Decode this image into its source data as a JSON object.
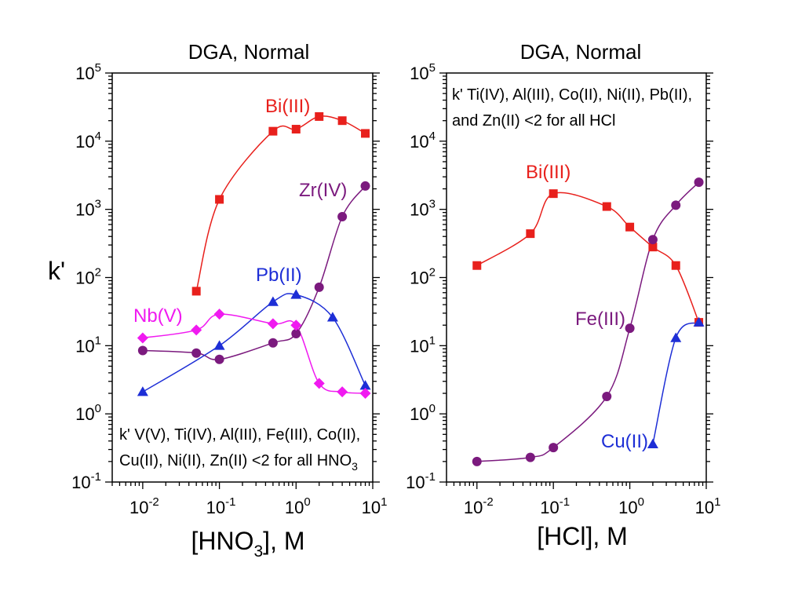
{
  "chart_data": [
    {
      "type": "scatter",
      "title": "DGA, Normal",
      "xlabel": "[HNO3], M",
      "xlabel_parts": {
        "prefix": "[HNO",
        "sub": "3",
        "suffix": "], M"
      },
      "ylabel": "k'",
      "xscale": "log",
      "yscale": "log",
      "xlim": [
        0.004,
        10
      ],
      "ylim": [
        0.1,
        100000
      ],
      "x_ticks": [
        {
          "base": "10",
          "exp": "-2"
        },
        {
          "base": "10",
          "exp": "-1"
        },
        {
          "base": "10",
          "exp": "0"
        },
        {
          "base": "10",
          "exp": "1"
        }
      ],
      "y_ticks": [
        {
          "base": "10",
          "exp": "-1"
        },
        {
          "base": "10",
          "exp": "0"
        },
        {
          "base": "10",
          "exp": "1"
        },
        {
          "base": "10",
          "exp": "2"
        },
        {
          "base": "10",
          "exp": "3"
        },
        {
          "base": "10",
          "exp": "4"
        },
        {
          "base": "10",
          "exp": "5"
        }
      ],
      "annotation": {
        "line1": "k' V(V), Ti(IV), Al(III), Fe(III), Co(II),",
        "line2_prefix": "Cu(II), Ni(II), Zn(II) <2 for all HNO",
        "line2_sub": "3"
      },
      "series": [
        {
          "name": "Bi(III)",
          "color": "#e8201c",
          "marker": "square",
          "x": [
            0.05,
            0.1,
            0.5,
            1,
            2,
            4,
            8
          ],
          "y": [
            63,
            1400,
            14000,
            15000,
            23000,
            20000,
            13000
          ]
        },
        {
          "name": "Zr(IV)",
          "color": "#7b1a7e",
          "marker": "circle",
          "x": [
            0.01,
            0.05,
            0.1,
            0.5,
            1,
            2,
            4,
            8
          ],
          "y": [
            8.5,
            7.8,
            6.3,
            11,
            15,
            72,
            780,
            2200
          ]
        },
        {
          "name": "Pb(II)",
          "color": "#1d2ed6",
          "marker": "triangle",
          "x": [
            0.01,
            0.1,
            0.5,
            1,
            3,
            8
          ],
          "y": [
            2.1,
            10,
            44,
            56,
            26,
            2.6
          ]
        },
        {
          "name": "Nb(V)",
          "color": "#f01af0",
          "marker": "diamond",
          "x": [
            0.01,
            0.05,
            0.1,
            0.5,
            1,
            2,
            4,
            8
          ],
          "y": [
            13,
            17,
            29,
            21,
            20,
            2.8,
            2.1,
            2.0
          ]
        }
      ]
    },
    {
      "type": "scatter",
      "title": "DGA, Normal",
      "xlabel": "[HCl], M",
      "ylabel": "",
      "xscale": "log",
      "yscale": "log",
      "xlim": [
        0.004,
        10
      ],
      "ylim": [
        0.1,
        100000
      ],
      "x_ticks": [
        {
          "base": "10",
          "exp": "-2"
        },
        {
          "base": "10",
          "exp": "-1"
        },
        {
          "base": "10",
          "exp": "0"
        },
        {
          "base": "10",
          "exp": "1"
        }
      ],
      "y_ticks": [
        {
          "base": "10",
          "exp": "-1"
        },
        {
          "base": "10",
          "exp": "0"
        },
        {
          "base": "10",
          "exp": "1"
        },
        {
          "base": "10",
          "exp": "2"
        },
        {
          "base": "10",
          "exp": "3"
        },
        {
          "base": "10",
          "exp": "4"
        },
        {
          "base": "10",
          "exp": "5"
        }
      ],
      "annotation": {
        "line1": "k' Ti(IV), Al(III), Co(II), Ni(II), Pb(II),",
        "line2_prefix": "and Zn(II) <2 for all HCl",
        "line2_sub": ""
      },
      "series": [
        {
          "name": "Bi(III)",
          "color": "#e8201c",
          "marker": "square",
          "x": [
            0.01,
            0.05,
            0.1,
            0.5,
            1,
            2,
            4,
            8
          ],
          "y": [
            150,
            440,
            1700,
            1100,
            550,
            280,
            150,
            22
          ]
        },
        {
          "name": "Fe(III)",
          "color": "#7b1a7e",
          "marker": "circle",
          "x": [
            0.01,
            0.05,
            0.1,
            0.5,
            1,
            2,
            4,
            8
          ],
          "y": [
            0.2,
            0.23,
            0.32,
            1.8,
            18,
            360,
            1150,
            2500
          ]
        },
        {
          "name": "Cu(II)",
          "color": "#1d2ed6",
          "marker": "triangle",
          "x": [
            2,
            4,
            8
          ],
          "y": [
            0.36,
            13,
            22
          ]
        }
      ]
    }
  ]
}
